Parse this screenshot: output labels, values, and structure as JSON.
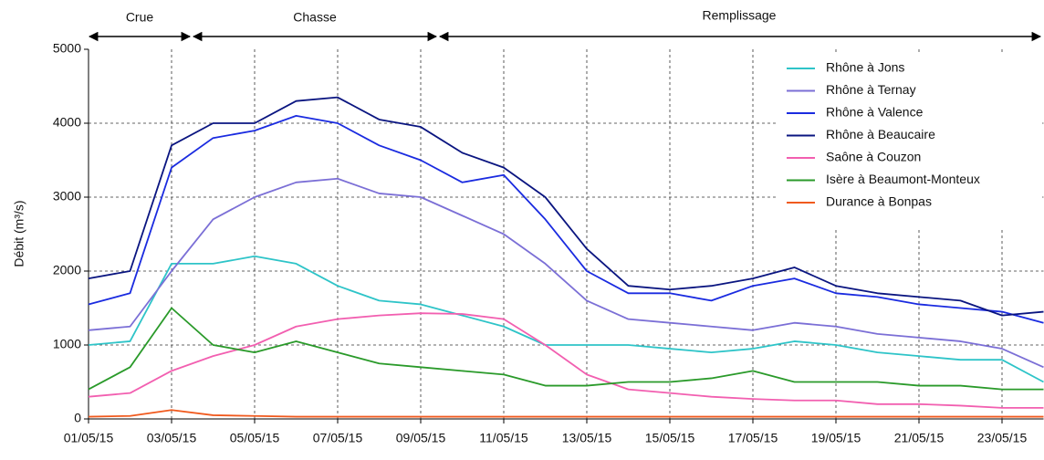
{
  "chart_data": {
    "type": "line",
    "ylabel": "Débit (m³/s)",
    "annotations": [
      "Crue",
      "Chasse",
      "Remplissage"
    ],
    "categories": [
      "01/05/15",
      null,
      "03/05/15",
      null,
      "05/05/15",
      null,
      "07/05/15",
      null,
      "09/05/15",
      null,
      "11/05/15",
      null,
      "13/05/15",
      null,
      "15/05/15",
      null,
      "17/05/15",
      null,
      "19/05/15",
      null,
      "21/05/15",
      null,
      "23/05/15",
      null
    ],
    "ylim": [
      0,
      5000
    ],
    "yticks": [
      0,
      1000,
      2000,
      3000,
      4000,
      5000
    ],
    "grid": true,
    "legend": "upper right",
    "series": [
      {
        "name": "Rhône à Jons",
        "color": "#2ec4c8",
        "values": [
          1000,
          1050,
          2100,
          2100,
          2200,
          2100,
          1800,
          1600,
          1550,
          1400,
          1250,
          1000,
          1000,
          1000,
          950,
          900,
          950,
          1050,
          1000,
          900,
          850,
          800,
          800,
          500
        ]
      },
      {
        "name": "Rhône à Ternay",
        "color": "#7b6fd6",
        "values": [
          1200,
          1250,
          2000,
          2700,
          3000,
          3200,
          3250,
          3050,
          3000,
          2750,
          2500,
          2100,
          1600,
          1350,
          1300,
          1250,
          1200,
          1300,
          1250,
          1150,
          1100,
          1050,
          950,
          700
        ]
      },
      {
        "name": "Rhône à Valence",
        "color": "#1a2be0",
        "values": [
          1550,
          1700,
          3400,
          3800,
          3900,
          4100,
          4000,
          3700,
          3500,
          3200,
          3300,
          2700,
          2000,
          1700,
          1700,
          1600,
          1800,
          1900,
          1700,
          1650,
          1550,
          1500,
          1450,
          1300
        ]
      },
      {
        "name": "Rhône à Beaucaire",
        "color": "#0a1580",
        "values": [
          1900,
          2000,
          3700,
          4000,
          4000,
          4300,
          4350,
          4050,
          3950,
          3600,
          3400,
          3000,
          2300,
          1800,
          1750,
          1800,
          1900,
          2050,
          1800,
          1700,
          1650,
          1600,
          1400,
          1450
        ]
      },
      {
        "name": "Saône à Couzon",
        "color": "#f25fb0",
        "values": [
          300,
          350,
          650,
          850,
          1000,
          1250,
          1350,
          1400,
          1430,
          1420,
          1350,
          1000,
          600,
          400,
          350,
          300,
          270,
          250,
          250,
          200,
          200,
          180,
          150,
          150
        ]
      },
      {
        "name": "Isère à Beaumont-Monteux",
        "color": "#2a9a2a",
        "values": [
          400,
          700,
          1500,
          1000,
          900,
          1050,
          900,
          750,
          700,
          650,
          600,
          450,
          450,
          500,
          500,
          550,
          650,
          500,
          500,
          500,
          450,
          450,
          400,
          400
        ]
      },
      {
        "name": "Durance à Bonpas",
        "color": "#f05a1e",
        "values": [
          30,
          40,
          120,
          50,
          40,
          30,
          30,
          30,
          30,
          30,
          30,
          30,
          30,
          30,
          30,
          30,
          30,
          30,
          30,
          30,
          30,
          30,
          30,
          30
        ]
      }
    ]
  }
}
